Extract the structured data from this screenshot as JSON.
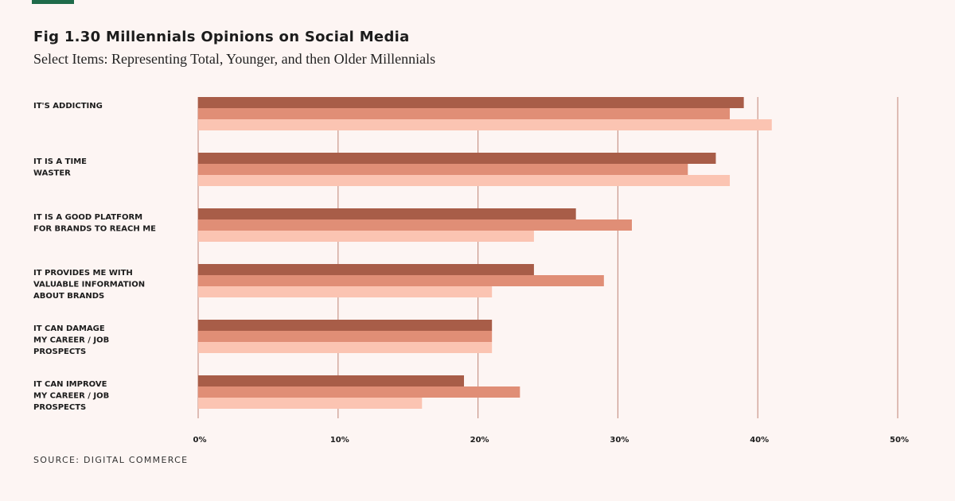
{
  "header": {
    "title": "Fig 1.30 Millennials Opinions on Social Media",
    "subtitle": "Select Items: Representing Total, Younger, and then Older Millennials"
  },
  "footer": {
    "source": "SOURCE: DIGITAL COMMERCE"
  },
  "colors": {
    "accent": "#1f6b4a",
    "gridline": "#c9968a",
    "total": "#a85d48",
    "younger": "#e08e76",
    "older": "#fbc4b2"
  },
  "chart_data": {
    "type": "bar",
    "orientation": "horizontal",
    "title": "Fig 1.30 Millennials Opinions on Social Media",
    "subtitle": "Select Items: Representing Total, Younger, and then Older Millennials",
    "categories": [
      [
        "IT'S ADDICTING"
      ],
      [
        "IT IS A TIME",
        "WASTER"
      ],
      [
        "IT IS A GOOD PLATFORM",
        "FOR BRANDS TO REACH ME"
      ],
      [
        "IT PROVIDES ME WITH",
        "VALUABLE INFORMATION",
        "ABOUT BRANDS"
      ],
      [
        "IT CAN DAMAGE",
        "MY CAREER / JOB",
        "PROSPECTS"
      ],
      [
        "IT CAN IMPROVE",
        "MY CAREER / JOB",
        "PROSPECTS"
      ]
    ],
    "series": [
      {
        "name": "Total",
        "values": [
          39,
          37,
          27,
          24,
          21,
          19
        ]
      },
      {
        "name": "Younger",
        "values": [
          38,
          35,
          31,
          29,
          21,
          23
        ]
      },
      {
        "name": "Older",
        "values": [
          41,
          38,
          24,
          21,
          21,
          16
        ]
      }
    ],
    "xlim": [
      0,
      50
    ],
    "ticks": [
      "0%",
      "10%",
      "20%",
      "30%",
      "40%",
      "50%"
    ],
    "grid": true,
    "legend": "none"
  }
}
